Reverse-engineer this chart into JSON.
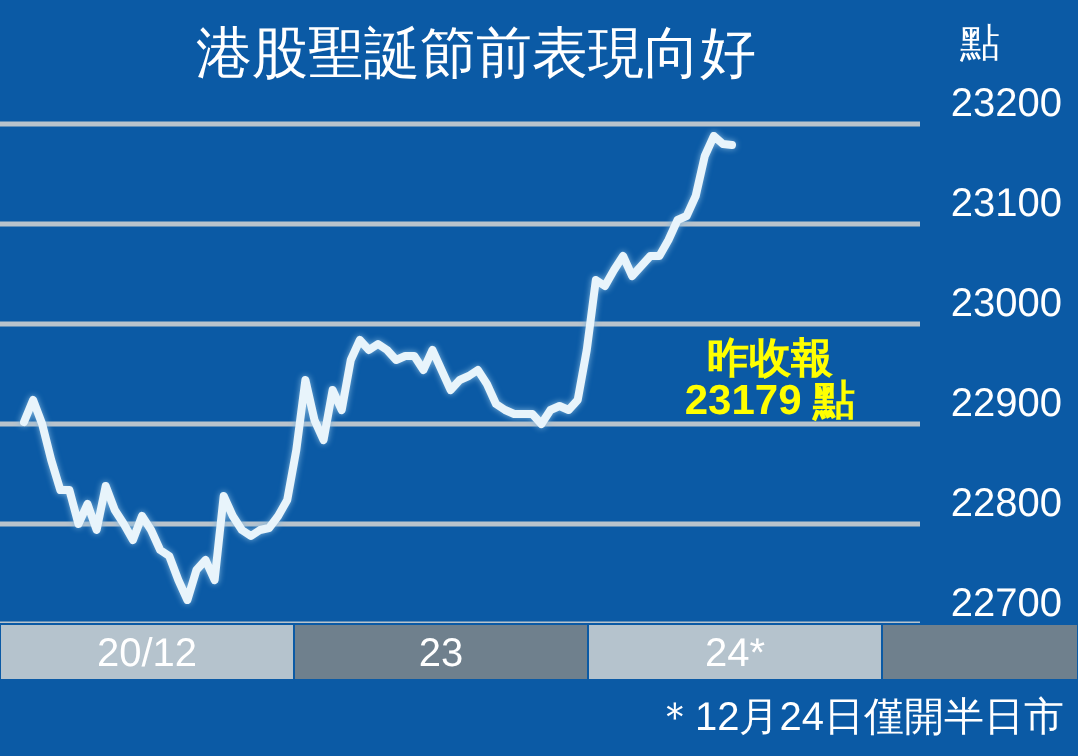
{
  "chart_data": {
    "type": "line",
    "title": "港股聖誕節前表現向好",
    "ylabel": "點",
    "categories": [
      null,
      null,
      null,
      null,
      null,
      null,
      null,
      null,
      null,
      null,
      null,
      null,
      null,
      null,
      null,
      null,
      null,
      null,
      null,
      null,
      null,
      null,
      null,
      null,
      null,
      null,
      null,
      null,
      null,
      null,
      null,
      null,
      null,
      null,
      null,
      null,
      null,
      null,
      null,
      null,
      null,
      null,
      null,
      null,
      null,
      null,
      null,
      null,
      null,
      null,
      null,
      null,
      null,
      null,
      null,
      null,
      null,
      null,
      null,
      null,
      null,
      null,
      null,
      null,
      null,
      null,
      null,
      null,
      null,
      null,
      null,
      null,
      null,
      null,
      null,
      null,
      null,
      null,
      null
    ],
    "ylim": [
      22700,
      23200
    ],
    "yticks": [
      22700,
      22800,
      22900,
      23000,
      23100,
      23200
    ],
    "grid": "y",
    "marker": "none",
    "line_style": "solid",
    "series": [
      {
        "color": "#e8f4fb",
        "values": [
          22902,
          22924,
          22900,
          22864,
          22834,
          22834,
          22800,
          22820,
          22794,
          22838,
          22814,
          22800,
          22784,
          22808,
          22794,
          22774,
          22768,
          22744,
          22724,
          22754,
          22764,
          22744,
          22828,
          22808,
          22794,
          22788,
          22794,
          22796,
          22808,
          22824,
          22874,
          22944,
          22904,
          22884,
          22934,
          22914,
          22964,
          22984,
          22974,
          22980,
          22974,
          22964,
          22968,
          22968,
          22954,
          22974,
          22954,
          22934,
          22944,
          22948,
          22954,
          22940,
          22920,
          22914,
          22910,
          22910,
          22910,
          22900,
          22914,
          22918,
          22914,
          22924,
          22974,
          23044,
          23038,
          23054,
          23068,
          23048,
          23058,
          23068,
          23068,
          23084,
          23104,
          23108,
          23128,
          23168,
          23188,
          23180,
          23179
        ]
      }
    ],
    "annotations": [
      "20/12",
      "23",
      "24*",
      "昨收報",
      "23179 點",
      "＊12月24日僅開半日市"
    ]
  }
}
